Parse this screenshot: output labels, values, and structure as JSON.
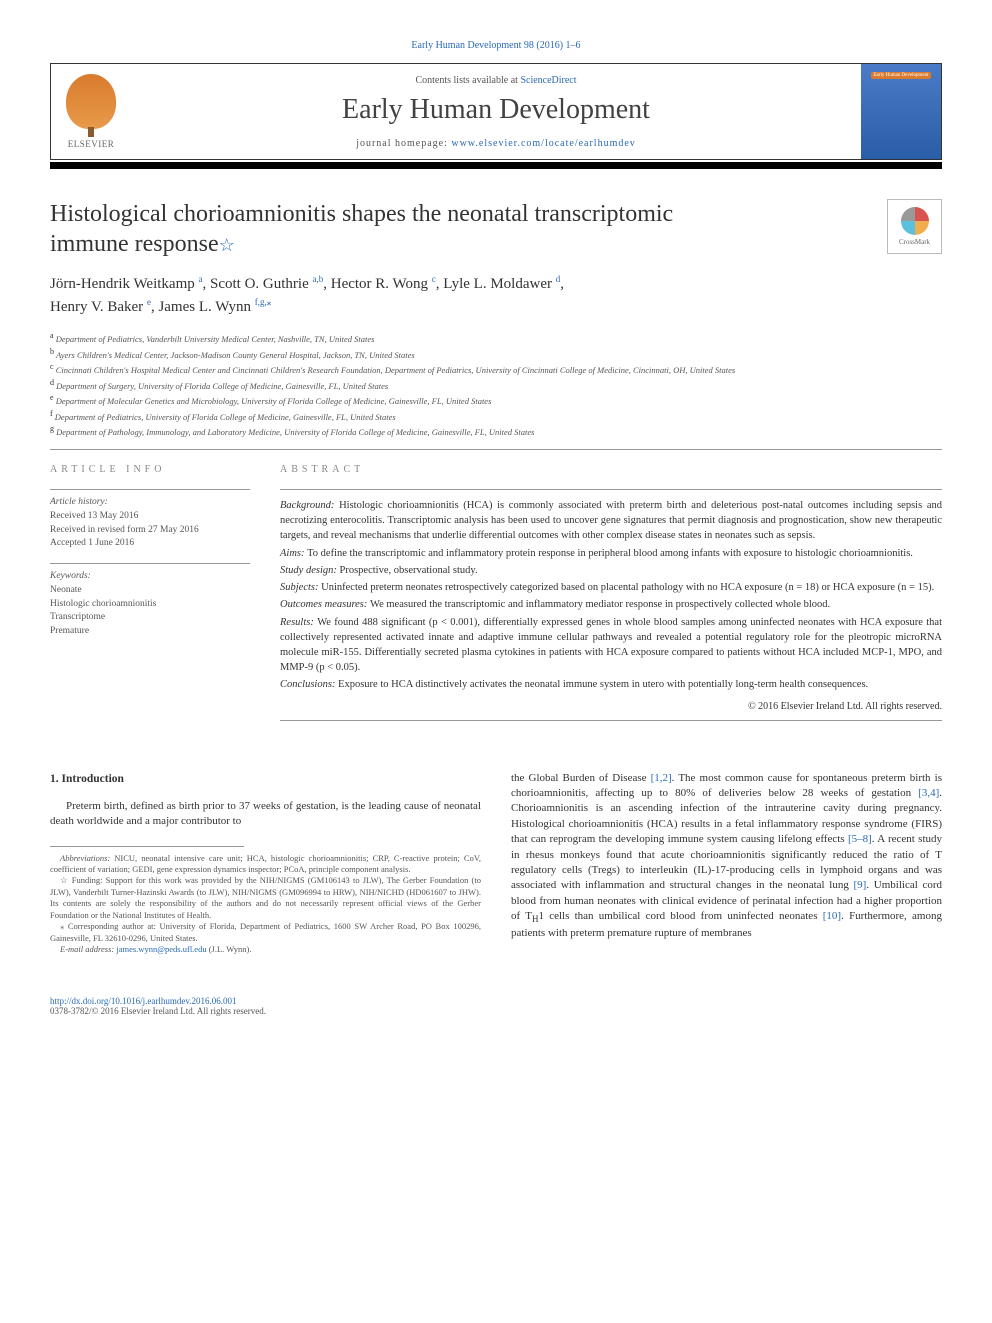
{
  "journal_ref": "Early Human Development 98 (2016) 1–6",
  "header": {
    "contents_prefix": "Contents lists available at ",
    "contents_link": "ScienceDirect",
    "journal_title": "Early Human Development",
    "homepage_prefix": "journal homepage: ",
    "homepage_link": "www.elsevier.com/locate/earlhumdev",
    "publisher": "ELSEVIER",
    "cover_small_label": "Early Human Development"
  },
  "article": {
    "title_line1": "Histological chorioamnionitis shapes the neonatal transcriptomic",
    "title_line2": "immune response",
    "title_star": "☆",
    "crossmark_label": "CrossMark"
  },
  "authors_html_parts": [
    {
      "name": "Jörn-Hendrik Weitkamp ",
      "sup": "a"
    },
    {
      "name": ", Scott O. Guthrie ",
      "sup": "a,b"
    },
    {
      "name": ", Hector R. Wong ",
      "sup": "c"
    },
    {
      "name": ", Lyle L. Moldawer ",
      "sup": "d"
    },
    {
      "name": ",\nHenry V. Baker ",
      "sup": "e"
    },
    {
      "name": ", James L. Wynn ",
      "sup": "f,g,",
      "corr": "⁎"
    }
  ],
  "affiliations": [
    {
      "sup": "a",
      "text": " Department of Pediatrics, Vanderbilt University Medical Center, Nashville, TN, United States"
    },
    {
      "sup": "b",
      "text": " Ayers Children's Medical Center, Jackson-Madison County General Hospital, Jackson, TN, United States"
    },
    {
      "sup": "c",
      "text": " Cincinnati Children's Hospital Medical Center and Cincinnati Children's Research Foundation, Department of Pediatrics, University of Cincinnati College of Medicine, Cincinnati, OH, United States"
    },
    {
      "sup": "d",
      "text": " Department of Surgery, University of Florida College of Medicine, Gainesville, FL, United States"
    },
    {
      "sup": "e",
      "text": " Department of Molecular Genetics and Microbiology, University of Florida College of Medicine, Gainesville, FL, United States"
    },
    {
      "sup": "f",
      "text": " Department of Pediatrics, University of Florida College of Medicine, Gainesville, FL, United States"
    },
    {
      "sup": "g",
      "text": " Department of Pathology, Immunology, and Laboratory Medicine, University of Florida College of Medicine, Gainesville, FL, United States"
    }
  ],
  "article_info": {
    "heading": "ARTICLE INFO",
    "history_label": "Article history:",
    "history": [
      "Received 13 May 2016",
      "Received in revised form 27 May 2016",
      "Accepted 1 June 2016"
    ],
    "keywords_label": "Keywords:",
    "keywords": [
      "Neonate",
      "Histologic chorioamnionitis",
      "Transcriptome",
      "Premature"
    ]
  },
  "abstract": {
    "heading": "ABSTRACT",
    "sections": [
      {
        "label": "Background: ",
        "text": "Histologic chorioamnionitis (HCA) is commonly associated with preterm birth and deleterious post-natal outcomes including sepsis and necrotizing enterocolitis. Transcriptomic analysis has been used to uncover gene signatures that permit diagnosis and prognostication, show new therapeutic targets, and reveal mechanisms that underlie differential outcomes with other complex disease states in neonates such as sepsis."
      },
      {
        "label": "Aims: ",
        "text": "To define the transcriptomic and inflammatory protein response in peripheral blood among infants with exposure to histologic chorioamnionitis."
      },
      {
        "label": "Study design: ",
        "text": "Prospective, observational study."
      },
      {
        "label": "Subjects: ",
        "text": "Uninfected preterm neonates retrospectively categorized based on placental pathology with no HCA exposure (n = 18) or HCA exposure (n = 15)."
      },
      {
        "label": "Outcomes measures: ",
        "text": "We measured the transcriptomic and inflammatory mediator response in prospectively collected whole blood."
      },
      {
        "label": "Results: ",
        "text": "We found 488 significant (p < 0.001), differentially expressed genes in whole blood samples among uninfected neonates with HCA exposure that collectively represented activated innate and adaptive immune cellular pathways and revealed a potential regulatory role for the pleotropic microRNA molecule miR-155. Differentially secreted plasma cytokines in patients with HCA exposure compared to patients without HCA included MCP-1, MPO, and MMP-9 (p < 0.05)."
      },
      {
        "label": "Conclusions: ",
        "text": "Exposure to HCA distinctively activates the neonatal immune system in utero with potentially long-term health consequences."
      }
    ],
    "copyright": "© 2016 Elsevier Ireland Ltd. All rights reserved."
  },
  "body": {
    "intro_heading": "1. Introduction",
    "col1_para": "Preterm birth, defined as birth prior to 37 weeks of gestation, is the leading cause of neonatal death worldwide and a major contributor to",
    "col2_para_parts": [
      {
        "t": "the Global Burden of Disease "
      },
      {
        "c": "[1,2]"
      },
      {
        "t": ". The most common cause for spontaneous preterm birth is chorioamnionitis, affecting up to 80% of deliveries below 28 weeks of gestation "
      },
      {
        "c": "[3,4]"
      },
      {
        "t": ". Chorioamnionitis is an ascending infection of the intrauterine cavity during pregnancy. Histological chorioamnionitis (HCA) results in a fetal inflammatory response syndrome (FIRS) that can reprogram the developing immune system causing lifelong effects "
      },
      {
        "c": "[5–8]"
      },
      {
        "t": ". A recent study in rhesus monkeys found that acute chorioamnionitis significantly reduced the ratio of T regulatory cells (Tregs) to interleukin (IL)-17-producing cells in lymphoid organs and was associated with inflammation and structural changes in the neonatal lung "
      },
      {
        "c": "[9]"
      },
      {
        "t": ". Umbilical cord blood from human neonates with clinical evidence of perinatal infection had a higher proportion of T"
      },
      {
        "sub": "H"
      },
      {
        "t": "1 cells than umbilical cord blood from uninfected neonates "
      },
      {
        "c": "[10]"
      },
      {
        "t": ". Furthermore, among patients with preterm premature rupture of membranes"
      }
    ]
  },
  "footnotes": {
    "abbrev_label": "Abbreviations: ",
    "abbrev_text": "NICU, neonatal intensive care unit; HCA, histologic chorioamnionitis; CRP, C-reactive protein; CoV, coefficient of variation; GEDI, gene expression dynamics inspector; PCoA, principle component analysis.",
    "funding_star": "☆",
    "funding_text": " Funding: Support for this work was provided by the NIH/NIGMS (GM106143 to JLW), The Gerber Foundation (to JLW), Vanderbilt Turner-Hazinski Awards (to JLW), NIH/NIGMS (GM096994 to HRW), NIH/NICHD (HD061607 to JHW). Its contents are solely the responsibility of the authors and do not necessarily represent official views of the Gerber Foundation or the National Institutes of Health.",
    "corr_star": "⁎",
    "corr_text": " Corresponding author at: University of Florida, Department of Pediatrics, 1600 SW Archer Road, PO Box 100296, Gainesville, FL 32610-0296, United States.",
    "email_label": "E-mail address: ",
    "email_link": "james.wynn@peds.ufl.edu",
    "email_suffix": " (J.L. Wynn)."
  },
  "footer": {
    "doi": "http://dx.doi.org/10.1016/j.earlhumdev.2016.06.001",
    "issn_line": "0378-3782/© 2016 Elsevier Ireland Ltd. All rights reserved."
  },
  "colors": {
    "link": "#2a6ab5",
    "text": "#333333",
    "muted": "#555555",
    "rule": "#999999"
  }
}
